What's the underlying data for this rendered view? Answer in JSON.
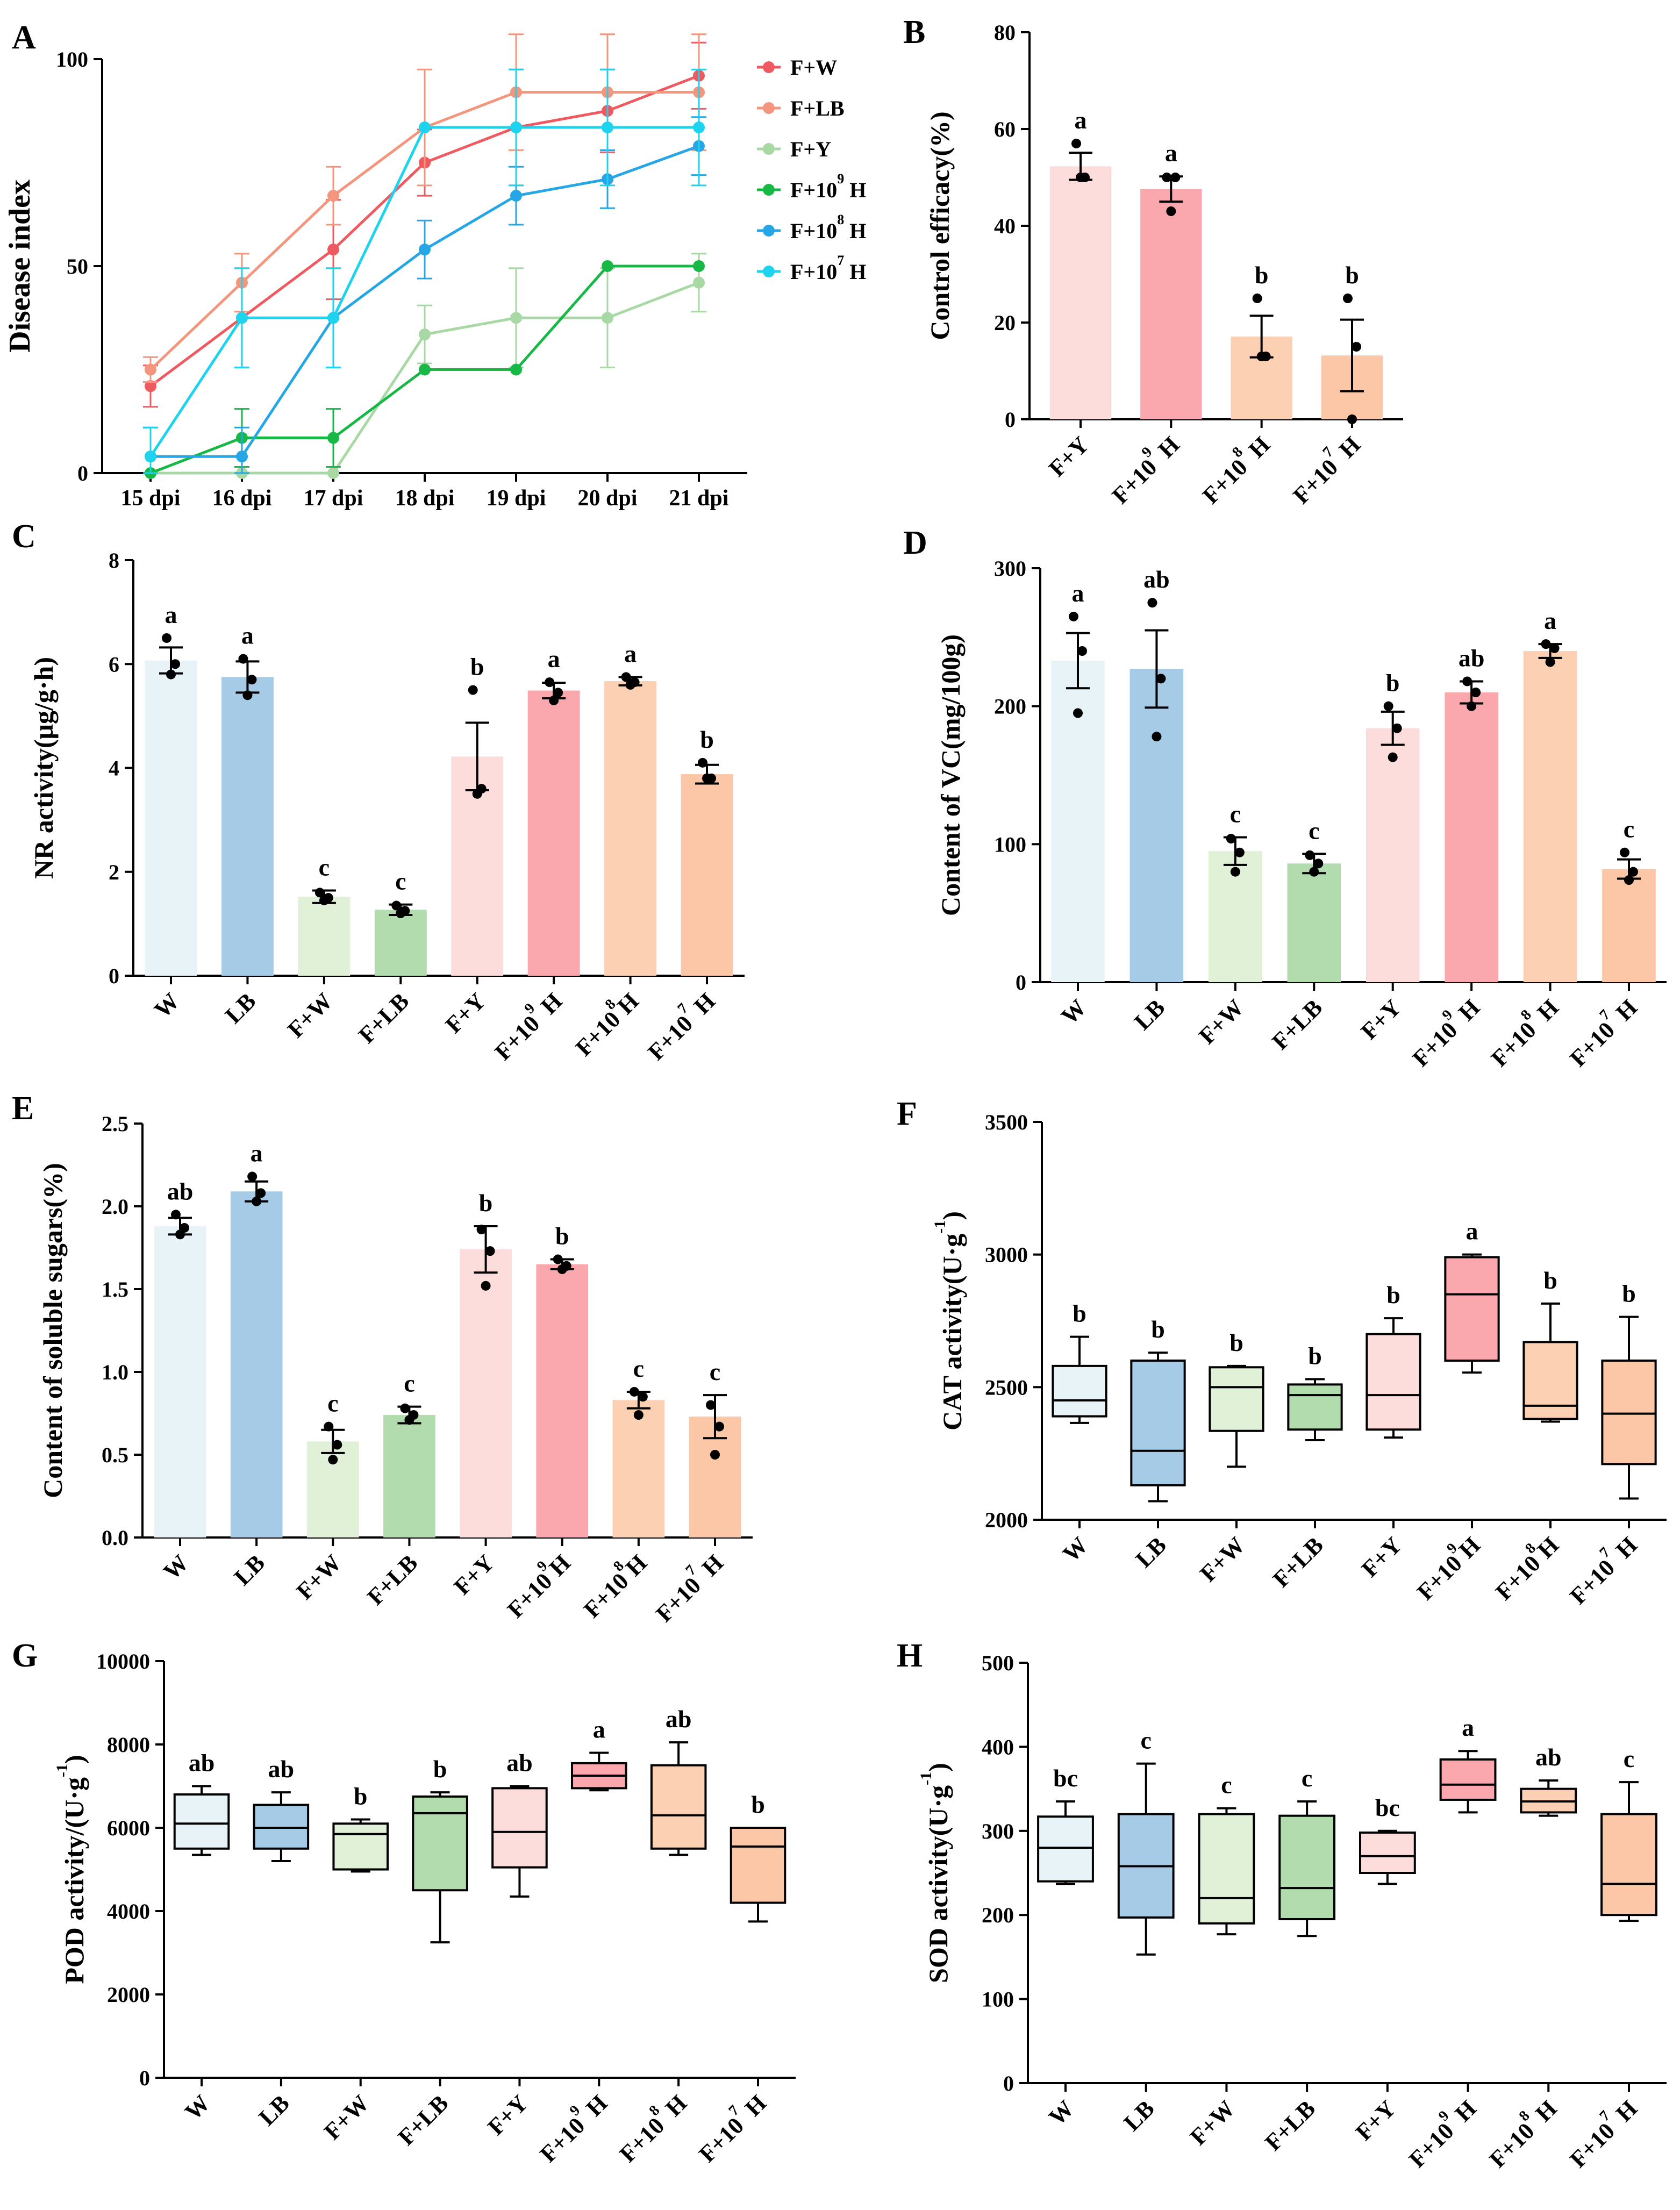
{
  "colors": {
    "W": "#e8f3f7",
    "LB": "#a6cbe6",
    "F+W": "#e0f1d8",
    "F+LB": "#b2dbae",
    "F+Y": "#fddcdc",
    "F+10^9 H": "#fba7ae",
    "F+10^8 H": "#fcd0b2",
    "F+10^7 H": "#fbc7a6",
    "line_FW": "#ee5a60",
    "line_FLB": "#f3967d",
    "line_FY": "#a8d8a3",
    "line_F9": "#17b845",
    "line_F8": "#27a6e6",
    "line_F7": "#1ed3ee"
  },
  "chart_data": [
    {
      "id": "A",
      "panel_label": "A",
      "type": "line",
      "ylabel": "Disease index",
      "ylim": [
        0,
        100
      ],
      "yticks": [
        "0",
        "50",
        "100"
      ],
      "categories": [
        "15 dpi",
        "16 dpi",
        "17 dpi",
        "18 dpi",
        "19 dpi",
        "20 dpi",
        "21 dpi"
      ],
      "series": [
        {
          "name": "F+W",
          "base": "F+W",
          "sup": "",
          "tail": "",
          "color_key": "line_FW",
          "values": [
            21,
            37.5,
            54,
            75,
            83.5,
            87.5,
            96
          ],
          "errors": [
            5,
            12,
            12,
            8,
            14,
            10,
            8
          ]
        },
        {
          "name": "F+LB",
          "base": "F+LB",
          "sup": "",
          "tail": "",
          "color_key": "line_FLB",
          "values": [
            25,
            46,
            67,
            83.5,
            92,
            92,
            92
          ],
          "errors": [
            3,
            7,
            7,
            14,
            14,
            14,
            14
          ]
        },
        {
          "name": "F+Y",
          "base": "F+Y",
          "sup": "",
          "tail": "",
          "color_key": "line_FY",
          "values": [
            0,
            0,
            0,
            33.5,
            37.5,
            37.5,
            46
          ],
          "errors": [
            0,
            0,
            0,
            7,
            12,
            12,
            7
          ]
        },
        {
          "name": "F+10^9 H",
          "base": "F+10",
          "sup": "9",
          "tail": " H",
          "color_key": "line_F9",
          "values": [
            0,
            8.5,
            8.5,
            25,
            25,
            50,
            50
          ],
          "errors": [
            0,
            7,
            7,
            0,
            0,
            0,
            0
          ]
        },
        {
          "name": "F+10^8 H",
          "base": "F+10",
          "sup": "8",
          "tail": " H",
          "color_key": "line_F8",
          "values": [
            4,
            4,
            37.5,
            54,
            67,
            71,
            79
          ],
          "errors": [
            7,
            7,
            12,
            7,
            7,
            7,
            7
          ]
        },
        {
          "name": "F+10^7 H",
          "base": "F+10",
          "sup": "7",
          "tail": " H",
          "color_key": "line_F7",
          "values": [
            4,
            37.5,
            37.5,
            83.5,
            83.5,
            83.5,
            83.5
          ],
          "errors": [
            7,
            12,
            12,
            0,
            14,
            14,
            14
          ]
        }
      ]
    },
    {
      "id": "B",
      "panel_label": "B",
      "type": "bar",
      "ylabel": "Control efficacy(%)",
      "ylim": [
        0,
        80
      ],
      "yticks": [
        "0",
        "20",
        "40",
        "60",
        "80"
      ],
      "categories": [
        {
          "key": "F+Y",
          "base": "F+Y",
          "sup": "",
          "tail": ""
        },
        {
          "key": "F+10^9 H",
          "base": "F+10",
          "sup": "9",
          "tail": " H"
        },
        {
          "key": "F+10^8 H",
          "base": "F+10",
          "sup": "8",
          "tail": " H"
        },
        {
          "key": "F+10^7 H",
          "base": "F+10",
          "sup": "7",
          "tail": " H"
        }
      ],
      "values": [
        52.3,
        47.6,
        17.1,
        13.2
      ],
      "errors": [
        2.8,
        2.6,
        4.3,
        7.4
      ],
      "points": [
        [
          57,
          50,
          50
        ],
        [
          50,
          50,
          43
        ],
        [
          25,
          13,
          13
        ],
        [
          25,
          15,
          0
        ]
      ],
      "letters": [
        "a",
        "a",
        "b",
        "b"
      ]
    },
    {
      "id": "C",
      "panel_label": "C",
      "type": "bar",
      "ylabel": "NR activity(μg/g·h)",
      "ylim": [
        0,
        8
      ],
      "yticks": [
        "0",
        "2",
        "4",
        "6",
        "8"
      ],
      "categories": [
        {
          "key": "W",
          "base": "W",
          "sup": "",
          "tail": ""
        },
        {
          "key": "LB",
          "base": "LB",
          "sup": "",
          "tail": ""
        },
        {
          "key": "F+W",
          "base": "F+W",
          "sup": "",
          "tail": ""
        },
        {
          "key": "F+LB",
          "base": "F+LB",
          "sup": "",
          "tail": ""
        },
        {
          "key": "F+Y",
          "base": "F+Y",
          "sup": "",
          "tail": ""
        },
        {
          "key": "F+10^9 H",
          "base": "F+10",
          "sup": "9",
          "tail": " H"
        },
        {
          "key": "F+10^8 H",
          "base": "F+10",
          "sup": "8",
          "tail": "H"
        },
        {
          "key": "F+10^7 H",
          "base": "F+10",
          "sup": "7",
          "tail": " H"
        }
      ],
      "values": [
        6.07,
        5.75,
        1.52,
        1.27,
        4.22,
        5.49,
        5.67,
        3.88
      ],
      "errors": [
        0.25,
        0.3,
        0.12,
        0.1,
        0.65,
        0.15,
        0.08,
        0.18
      ],
      "points": [
        [
          6.5,
          6.0,
          5.8
        ],
        [
          6.1,
          5.7,
          5.4
        ],
        [
          1.6,
          1.5,
          1.45
        ],
        [
          1.35,
          1.25,
          1.2
        ],
        [
          5.5,
          3.6,
          3.5
        ],
        [
          5.65,
          5.45,
          5.3
        ],
        [
          5.75,
          5.65,
          5.6
        ],
        [
          4.1,
          3.8,
          3.8
        ]
      ],
      "letters": [
        "a",
        "a",
        "c",
        "c",
        "b",
        "a",
        "a",
        "b"
      ]
    },
    {
      "id": "D",
      "panel_label": "D",
      "type": "bar",
      "ylabel": "Content of VC(mg/100g)",
      "ylim": [
        0,
        300
      ],
      "yticks": [
        "0",
        "100",
        "200",
        "300"
      ],
      "categories": [
        {
          "key": "W",
          "base": "W",
          "sup": "",
          "tail": ""
        },
        {
          "key": "LB",
          "base": "LB",
          "sup": "",
          "tail": ""
        },
        {
          "key": "F+W",
          "base": "F+W",
          "sup": "",
          "tail": ""
        },
        {
          "key": "F+LB",
          "base": "F+LB",
          "sup": "",
          "tail": ""
        },
        {
          "key": "F+Y",
          "base": "F+Y",
          "sup": "",
          "tail": ""
        },
        {
          "key": "F+10^9 H",
          "base": "F+10",
          "sup": "9",
          "tail": " H"
        },
        {
          "key": "F+10^8 H",
          "base": "F+10",
          "sup": "8",
          "tail": " H"
        },
        {
          "key": "F+10^7 H",
          "base": "F+10",
          "sup": "7",
          "tail": " H"
        }
      ],
      "values": [
        233,
        227,
        95,
        86,
        184,
        210,
        240,
        82
      ],
      "errors": [
        20,
        28,
        10,
        7,
        12,
        8,
        5,
        7
      ],
      "points": [
        [
          265,
          240,
          195
        ],
        [
          275,
          220,
          178
        ],
        [
          104,
          94,
          80
        ],
        [
          92,
          86,
          80
        ],
        [
          200,
          184,
          163
        ],
        [
          218,
          210,
          200
        ],
        [
          245,
          242,
          232
        ],
        [
          94,
          80,
          74
        ]
      ],
      "letters": [
        "a",
        "ab",
        "c",
        "c",
        "b",
        "ab",
        "a",
        "c"
      ]
    },
    {
      "id": "E",
      "panel_label": "E",
      "type": "bar",
      "ylabel": "Content of soluble sugars(%)",
      "ylim": [
        0,
        2.5
      ],
      "yticks": [
        "0.0",
        "0.5",
        "1.0",
        "1.5",
        "2.0",
        "2.5"
      ],
      "categories": [
        {
          "key": "W",
          "base": "W",
          "sup": "",
          "tail": ""
        },
        {
          "key": "LB",
          "base": "LB",
          "sup": "",
          "tail": ""
        },
        {
          "key": "F+W",
          "base": "F+W",
          "sup": "",
          "tail": ""
        },
        {
          "key": "F+LB",
          "base": "F+LB",
          "sup": "",
          "tail": ""
        },
        {
          "key": "F+Y",
          "base": "F+Y",
          "sup": "",
          "tail": ""
        },
        {
          "key": "F+10^9 H",
          "base": "F+10",
          "sup": "9",
          "tail": "H"
        },
        {
          "key": "F+10^8 H",
          "base": "F+10",
          "sup": "8",
          "tail": "H"
        },
        {
          "key": "F+10^7 H",
          "base": "F+10",
          "sup": "7",
          "tail": " H"
        }
      ],
      "values": [
        1.88,
        2.09,
        0.58,
        0.74,
        1.74,
        1.65,
        0.83,
        0.73
      ],
      "errors": [
        0.05,
        0.06,
        0.07,
        0.05,
        0.14,
        0.03,
        0.05,
        0.13
      ],
      "points": [
        [
          1.95,
          1.87,
          1.83
        ],
        [
          2.18,
          2.08,
          2.03
        ],
        [
          0.67,
          0.56,
          0.47
        ],
        [
          0.78,
          0.74,
          0.71
        ],
        [
          1.86,
          1.73,
          1.52
        ],
        [
          1.68,
          1.64,
          1.62
        ],
        [
          0.88,
          0.85,
          0.74
        ],
        [
          0.8,
          0.67,
          0.5
        ]
      ],
      "letters": [
        "ab",
        "a",
        "c",
        "c",
        "b",
        "b",
        "c",
        "c"
      ]
    },
    {
      "id": "F",
      "panel_label": "F",
      "type": "box",
      "ylabel_base": "CAT activity(U·g",
      "ylabel_sup": "-1",
      "ylabel_tail": ")",
      "ylim": [
        2000,
        3500
      ],
      "yticks": [
        "2000",
        "2500",
        "3000",
        "3500"
      ],
      "categories": [
        {
          "key": "W",
          "base": "W",
          "sup": "",
          "tail": ""
        },
        {
          "key": "LB",
          "base": "LB",
          "sup": "",
          "tail": ""
        },
        {
          "key": "F+W",
          "base": "F+W",
          "sup": "",
          "tail": ""
        },
        {
          "key": "F+LB",
          "base": "F+LB",
          "sup": "",
          "tail": ""
        },
        {
          "key": "F+Y",
          "base": "F+Y",
          "sup": "",
          "tail": ""
        },
        {
          "key": "F+10^9 H",
          "base": "F+10",
          "sup": "9",
          "tail": "H"
        },
        {
          "key": "F+10^8 H",
          "base": "F+10",
          "sup": "8",
          "tail": "H"
        },
        {
          "key": "F+10^7 H",
          "base": "F+10",
          "sup": "7",
          "tail": " H"
        }
      ],
      "boxes": [
        {
          "min": 2365,
          "q1": 2390,
          "median": 2450,
          "q3": 2580,
          "max": 2690
        },
        {
          "min": 2070,
          "q1": 2130,
          "median": 2260,
          "q3": 2600,
          "max": 2630
        },
        {
          "min": 2200,
          "q1": 2335,
          "median": 2500,
          "q3": 2575,
          "max": 2580
        },
        {
          "min": 2300,
          "q1": 2340,
          "median": 2470,
          "q3": 2510,
          "max": 2530
        },
        {
          "min": 2310,
          "q1": 2340,
          "median": 2470,
          "q3": 2700,
          "max": 2760
        },
        {
          "min": 2555,
          "q1": 2600,
          "median": 2850,
          "q3": 2990,
          "max": 3000
        },
        {
          "min": 2370,
          "q1": 2380,
          "median": 2430,
          "q3": 2670,
          "max": 2815
        },
        {
          "min": 2080,
          "q1": 2210,
          "median": 2400,
          "q3": 2600,
          "max": 2765
        }
      ],
      "letters": [
        "b",
        "b",
        "b",
        "b",
        "b",
        "a",
        "b",
        "b"
      ]
    },
    {
      "id": "G",
      "panel_label": "G",
      "type": "box",
      "ylabel_base": "POD activity/(U·g",
      "ylabel_sup": "-1",
      "ylabel_tail": ")",
      "ylim": [
        0,
        10000
      ],
      "yticks": [
        "0",
        "2000",
        "4000",
        "6000",
        "8000",
        "10000"
      ],
      "categories": [
        {
          "key": "W",
          "base": "W",
          "sup": "",
          "tail": ""
        },
        {
          "key": "LB",
          "base": "LB",
          "sup": "",
          "tail": ""
        },
        {
          "key": "F+W",
          "base": "F+W",
          "sup": "",
          "tail": ""
        },
        {
          "key": "F+LB",
          "base": "F+LB",
          "sup": "",
          "tail": ""
        },
        {
          "key": "F+Y",
          "base": "F+Y",
          "sup": "",
          "tail": ""
        },
        {
          "key": "F+10^9 H",
          "base": "F+10",
          "sup": "9",
          "tail": " H"
        },
        {
          "key": "F+10^8 H",
          "base": "F+10",
          "sup": "8",
          "tail": " H"
        },
        {
          "key": "F+10^7 H",
          "base": "F+10",
          "sup": "7",
          "tail": " H"
        }
      ],
      "boxes": [
        {
          "min": 5350,
          "q1": 5500,
          "median": 6100,
          "q3": 6800,
          "max": 7000
        },
        {
          "min": 5200,
          "q1": 5500,
          "median": 6000,
          "q3": 6550,
          "max": 6850
        },
        {
          "min": 4950,
          "q1": 5000,
          "median": 5850,
          "q3": 6100,
          "max": 6200
        },
        {
          "min": 3250,
          "q1": 4500,
          "median": 6350,
          "q3": 6750,
          "max": 6850
        },
        {
          "min": 4350,
          "q1": 5050,
          "median": 5900,
          "q3": 6950,
          "max": 7000
        },
        {
          "min": 6900,
          "q1": 6950,
          "median": 7250,
          "q3": 7550,
          "max": 7800
        },
        {
          "min": 5350,
          "q1": 5500,
          "median": 6300,
          "q3": 7500,
          "max": 8050
        },
        {
          "min": 3750,
          "q1": 4200,
          "median": 5550,
          "q3": 6000,
          "max": 6000
        }
      ],
      "letters": [
        "ab",
        "ab",
        "b",
        "b",
        "ab",
        "a",
        "ab",
        "b"
      ]
    },
    {
      "id": "H",
      "panel_label": "H",
      "type": "box",
      "ylabel_base": "SOD activity(U·g",
      "ylabel_sup": "-1",
      "ylabel_tail": ")",
      "ylim": [
        0,
        500
      ],
      "yticks": [
        "0",
        "100",
        "200",
        "300",
        "400",
        "500"
      ],
      "categories": [
        {
          "key": "W",
          "base": "W",
          "sup": "",
          "tail": ""
        },
        {
          "key": "LB",
          "base": "LB",
          "sup": "",
          "tail": ""
        },
        {
          "key": "F+W",
          "base": "F+W",
          "sup": "",
          "tail": ""
        },
        {
          "key": "F+LB",
          "base": "F+LB",
          "sup": "",
          "tail": ""
        },
        {
          "key": "F+Y",
          "base": "F+Y",
          "sup": "",
          "tail": ""
        },
        {
          "key": "F+10^9 H",
          "base": "F+10",
          "sup": "9",
          "tail": " H"
        },
        {
          "key": "F+10^8 H",
          "base": "F+10",
          "sup": "8",
          "tail": " H"
        },
        {
          "key": "F+10^7 H",
          "base": "F+10",
          "sup": "7",
          "tail": " H"
        }
      ],
      "boxes": [
        {
          "min": 237,
          "q1": 240,
          "median": 280,
          "q3": 317,
          "max": 335
        },
        {
          "min": 153,
          "q1": 197,
          "median": 258,
          "q3": 320,
          "max": 380
        },
        {
          "min": 177,
          "q1": 190,
          "median": 220,
          "q3": 320,
          "max": 327
        },
        {
          "min": 175,
          "q1": 195,
          "median": 232,
          "q3": 318,
          "max": 335
        },
        {
          "min": 237,
          "q1": 250,
          "median": 270,
          "q3": 298,
          "max": 300
        },
        {
          "min": 322,
          "q1": 337,
          "median": 355,
          "q3": 385,
          "max": 395
        },
        {
          "min": 318,
          "q1": 322,
          "median": 335,
          "q3": 350,
          "max": 360
        },
        {
          "min": 193,
          "q1": 200,
          "median": 237,
          "q3": 320,
          "max": 358
        }
      ],
      "letters": [
        "bc",
        "c",
        "c",
        "c",
        "bc",
        "a",
        "ab",
        "c"
      ]
    }
  ]
}
